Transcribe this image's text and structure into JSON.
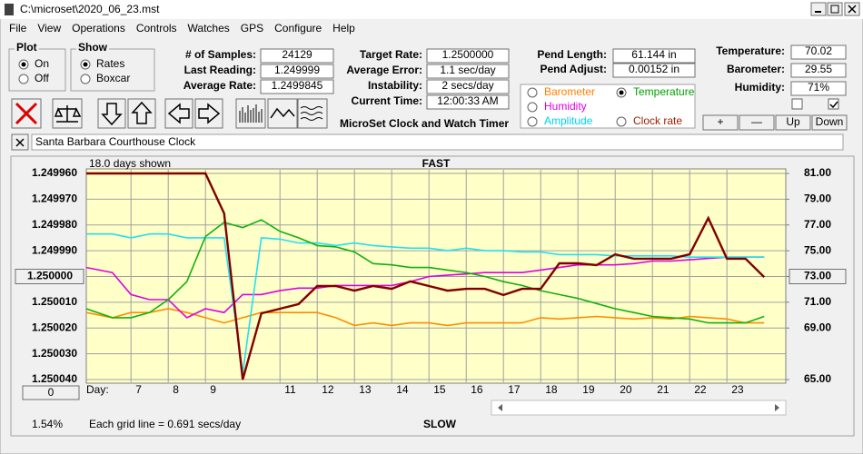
{
  "window": {
    "title": "C:\\microset\\2020_06_23.mst"
  },
  "menu": [
    "File",
    "View",
    "Operations",
    "Controls",
    "Watches",
    "GPS",
    "Configure",
    "Help"
  ],
  "plot_group": {
    "title": "Plot",
    "options": [
      "On",
      "Off"
    ],
    "selected": 0
  },
  "show_group": {
    "title": "Show",
    "options": [
      "Rates",
      "Boxcar"
    ],
    "selected": 0
  },
  "stats": [
    {
      "label": "# of Samples:",
      "value": "24129"
    },
    {
      "label": "Last Reading:",
      "value": "1.249999"
    },
    {
      "label": "Average Rate:",
      "value": "1.2499845"
    }
  ],
  "rates": [
    {
      "label": "Target Rate:",
      "value": "1.2500000"
    },
    {
      "label": "Average Error:",
      "value": "1.1 sec/day"
    },
    {
      "label": "Instability:",
      "value": "2 secs/day"
    },
    {
      "label": "Current Time:",
      "value": "12:00:33 AM"
    }
  ],
  "pendulum": [
    {
      "label": "Pend Length:",
      "value": "61.144 in"
    },
    {
      "label": "Pend Adjust:",
      "value": "0.00152 in"
    }
  ],
  "environment": [
    {
      "label": "Temperature:",
      "value": "70.02"
    },
    {
      "label": "Barometer:",
      "value": "29.55"
    },
    {
      "label": "Humidity:",
      "value": "71%"
    }
  ],
  "checkboxes": [
    false,
    true
  ],
  "app_title": "MicroSet Clock and Watch Timer",
  "channels": {
    "options": [
      {
        "label": "Barometer",
        "color": "#ff8000"
      },
      {
        "label": "Temperature",
        "color": "#00a000"
      },
      {
        "label": "Humidity",
        "color": "#e000e0"
      },
      {
        "label": "Amplitude",
        "color": "#00d0f0"
      },
      {
        "label": "Clock rate",
        "color": "#a02000"
      }
    ],
    "selected": 1
  },
  "adjust_buttons": [
    "+",
    "—",
    "Up",
    "Down"
  ],
  "clock_name": "Santa Barbara Courthouse Clock",
  "chart_data": {
    "type": "line",
    "title": "FAST",
    "annotations": {
      "days_shown": "18.0 days shown",
      "slow": "SLOW",
      "grid_note": "Each grid line = 0.691 secs/day",
      "percent": "1.54%",
      "offset": "0"
    },
    "x_label": "Day:",
    "x": [
      5.8,
      6.5,
      7,
      7.5,
      8,
      8.5,
      9,
      9.5,
      10,
      10.5,
      11,
      11.5,
      12,
      12.5,
      13,
      13.5,
      14,
      14.5,
      15,
      15.5,
      16,
      16.5,
      17,
      17.5,
      18,
      18.5,
      19,
      19.5,
      20,
      20.5,
      21,
      21.5,
      22,
      22.5,
      23,
      23.5,
      24
    ],
    "xlim": [
      5.8,
      24.58
    ],
    "xticks": [
      7,
      8,
      9,
      11,
      12,
      13,
      14,
      15,
      16,
      17,
      18,
      19,
      20,
      21,
      22,
      23
    ],
    "ylim": [
      1.25004,
      1.24996
    ],
    "yticks": [
      {
        "value": 1.24996,
        "label": "1.249960"
      },
      {
        "value": 1.24997,
        "label": "1.249970"
      },
      {
        "value": 1.24998,
        "label": "1.249980"
      },
      {
        "value": 1.24999,
        "label": "1.249990"
      },
      {
        "value": 1.25,
        "label": "1.250000"
      },
      {
        "value": 1.25001,
        "label": "1.250010"
      },
      {
        "value": 1.25002,
        "label": "1.250020"
      },
      {
        "value": 1.25003,
        "label": "1.250030"
      },
      {
        "value": 1.25004,
        "label": "1.250040"
      }
    ],
    "y2lim": [
      65,
      81
    ],
    "y2ticks": [
      {
        "value": 81,
        "label": "81.00"
      },
      {
        "value": 79,
        "label": "79.00"
      },
      {
        "value": 77,
        "label": "77.00"
      },
      {
        "value": 75,
        "label": "75.00"
      },
      {
        "value": 73,
        "label": "73.00"
      },
      {
        "value": 71,
        "label": "71.00"
      },
      {
        "value": 69,
        "label": "69.00"
      },
      {
        "value": 65,
        "label": "65.00"
      }
    ],
    "grid": true,
    "series": [
      {
        "name": "Barometer",
        "color": "#ff8c00",
        "axis": "y2",
        "values": [
          70.2,
          69.8,
          70.2,
          70.2,
          70.5,
          70.2,
          69.8,
          69.4,
          69.8,
          70.2,
          70.2,
          70.2,
          70.2,
          69.8,
          69.2,
          69.4,
          69.2,
          69.4,
          69.4,
          69.2,
          69.4,
          69.4,
          69.4,
          69.4,
          69.8,
          69.7,
          69.8,
          69.9,
          69.8,
          69.7,
          69.8,
          69.7,
          69.9,
          69.8,
          69.7,
          69.4,
          69.4
        ]
      },
      {
        "name": "Humidity",
        "color": "#e000e0",
        "axis": "y2",
        "values": [
          73.7,
          73.3,
          71.6,
          71.2,
          71.2,
          69.8,
          70.5,
          70.2,
          71.6,
          71.6,
          71.9,
          72.1,
          72.1,
          72.3,
          72.3,
          72.3,
          72.3,
          72.6,
          73.0,
          73.1,
          73.2,
          73.3,
          73.3,
          73.3,
          73.5,
          73.7,
          73.9,
          73.9,
          73.9,
          74.0,
          74.2,
          74.2,
          74.3,
          74.4,
          74.5,
          74.5,
          74.5
        ]
      },
      {
        "name": "Amplitude",
        "color": "#20e0f0",
        "axis": "y2",
        "values": [
          76.3,
          76.3,
          76.0,
          76.3,
          76.3,
          76.0,
          76.0,
          76.0,
          65.5,
          76.0,
          75.9,
          75.6,
          75.6,
          75.4,
          75.6,
          75.4,
          75.3,
          75.2,
          75.2,
          75.0,
          75.2,
          75.0,
          75.0,
          74.9,
          74.9,
          74.7,
          74.7,
          74.7,
          74.6,
          74.6,
          74.6,
          74.6,
          74.5,
          74.5,
          74.5,
          74.5,
          74.5
        ]
      },
      {
        "name": "Temperature",
        "color": "#10b010",
        "axis": "y2",
        "values": [
          70.5,
          69.8,
          69.8,
          70.2,
          71.2,
          72.6,
          76.1,
          77.2,
          76.8,
          77.4,
          76.5,
          76.0,
          75.4,
          75.3,
          74.9,
          74.0,
          73.9,
          73.7,
          73.7,
          73.5,
          73.3,
          73.0,
          72.6,
          72.3,
          71.9,
          71.6,
          71.3,
          70.9,
          70.5,
          70.2,
          69.9,
          69.8,
          69.7,
          69.4,
          69.4,
          69.4,
          69.9
        ]
      },
      {
        "name": "Clock rate",
        "color": "#800000",
        "values": [
          1.24996,
          1.24996,
          1.24996,
          1.24996,
          1.24996,
          1.24996,
          1.24996,
          1.2499755,
          1.25004,
          1.2500143,
          1.2500125,
          1.2500107,
          1.2500037,
          1.2500037,
          1.2500055,
          1.2500037,
          1.2500048,
          1.2500019,
          1.2500037,
          1.2500055,
          1.2500048,
          1.2500048,
          1.2500072,
          1.2500048,
          1.2500048,
          1.2499949,
          1.2499949,
          1.2499956,
          1.2499914,
          1.2499931,
          1.2499931,
          1.2499931,
          1.2499914,
          1.2499773,
          1.2499931,
          1.2499931,
          1.2500002
        ]
      }
    ]
  }
}
